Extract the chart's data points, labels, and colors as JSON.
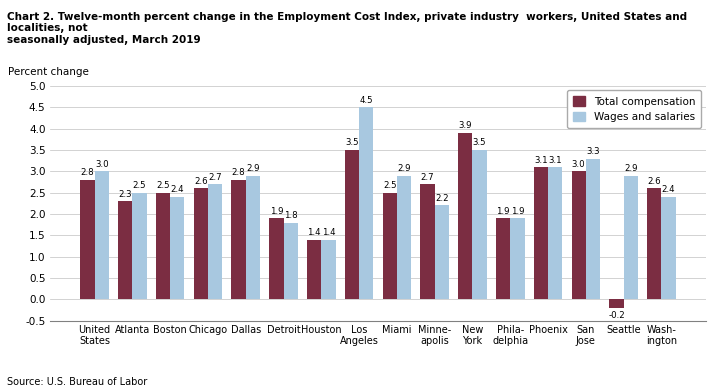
{
  "title_line1": "Chart 2. Twelve-month percent change in the Employment Cost Index, private industry  workers, United States and localities, not",
  "title_line2": "seasonally adjusted, March 2019",
  "ylabel": "Percent change",
  "categories": [
    "United\nStates",
    "Atlanta",
    "Boston",
    "Chicago",
    "Dallas",
    "Detroit",
    "Houston",
    "Los\nAngeles",
    "Miami",
    "Minne-\napolis",
    "New\nYork",
    "Phila-\ndelphia",
    "Phoenix",
    "San\nJose",
    "Seattle",
    "Wash-\nington"
  ],
  "total_compensation": [
    2.8,
    2.3,
    2.5,
    2.6,
    2.8,
    1.9,
    1.4,
    3.5,
    2.5,
    2.7,
    3.9,
    1.9,
    3.1,
    3.0,
    -0.2,
    2.6
  ],
  "wages_and_salaries": [
    3.0,
    2.5,
    2.4,
    2.7,
    2.9,
    1.8,
    1.4,
    4.5,
    2.9,
    2.2,
    3.5,
    1.9,
    3.1,
    3.3,
    2.9,
    2.4
  ],
  "total_comp_color": "#7B2D42",
  "wages_color": "#A8C8E0",
  "ylim": [
    -0.5,
    5.0
  ],
  "yticks": [
    -0.5,
    0.0,
    0.5,
    1.0,
    1.5,
    2.0,
    2.5,
    3.0,
    3.5,
    4.0,
    4.5,
    5.0
  ],
  "source": "Source: U.S. Bureau of Labor",
  "legend_labels": [
    "Total compensation",
    "Wages and salaries"
  ],
  "bar_width": 0.38
}
